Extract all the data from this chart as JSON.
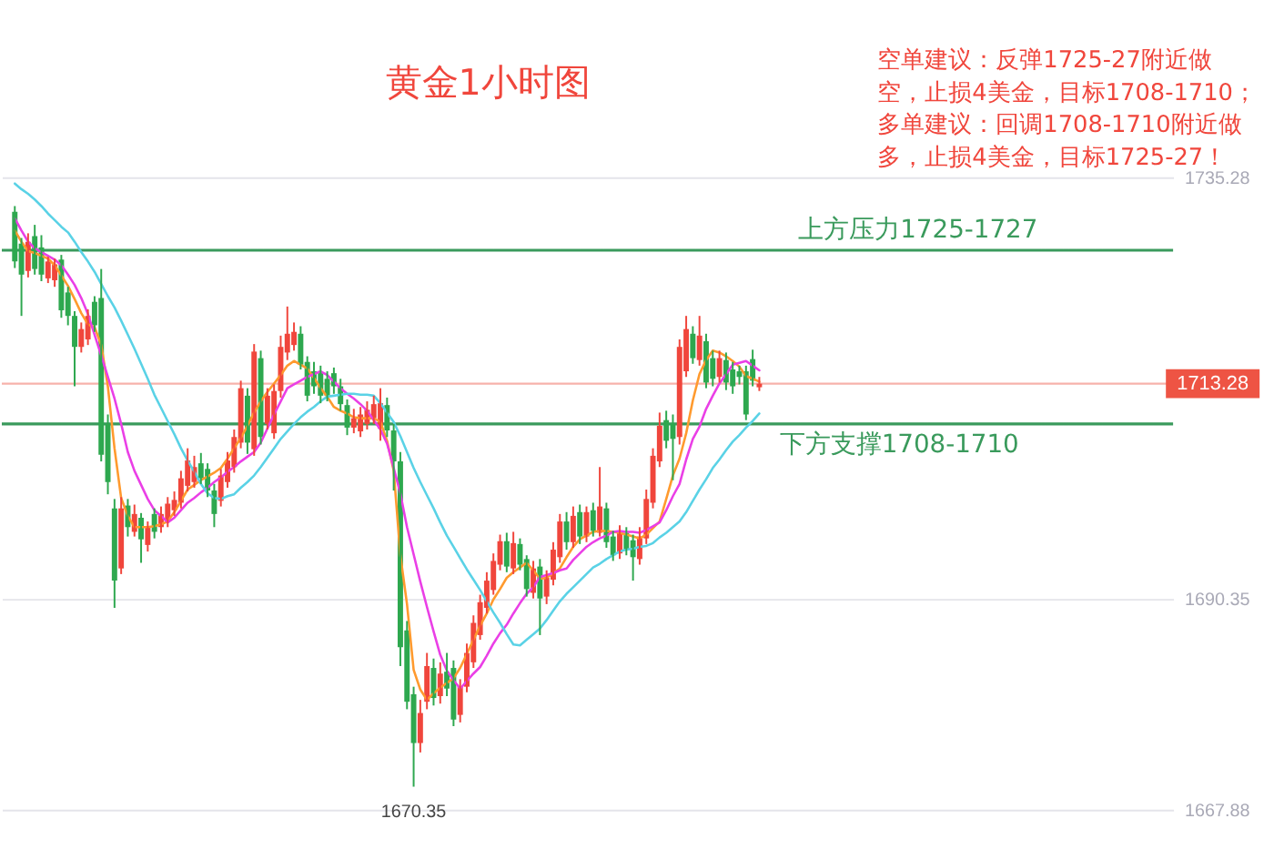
{
  "chart_data": {
    "type": "candlestick",
    "title": "黄金1小时图",
    "annotations": [
      "空单建议：反弹1725-27附近做空，止损4美金，目标1708-1710；多单建议：回调1708-1710附近做多，止损4美金，目标1725-27！",
      {
        "text": "1670.35",
        "y": 1670.35
      }
    ],
    "categories": [
      null,
      null,
      null,
      null,
      null,
      null,
      null,
      null,
      null,
      null,
      null,
      null,
      null,
      null,
      null,
      null,
      null,
      null,
      null,
      null,
      null,
      null,
      null,
      null,
      null,
      null,
      null,
      null,
      null,
      null,
      null,
      null,
      null,
      null,
      null,
      null,
      null,
      null,
      null,
      null,
      null,
      null,
      null,
      null,
      null,
      null,
      null,
      null,
      null,
      null,
      null,
      null,
      null,
      null,
      null,
      null,
      null,
      null,
      null,
      null,
      null,
      null,
      null,
      null,
      null,
      null,
      null,
      null,
      null,
      null,
      null,
      null,
      null,
      null,
      null,
      null,
      null,
      null,
      null,
      null,
      null,
      null,
      null,
      null,
      null,
      null,
      null,
      null,
      null,
      null,
      null,
      null,
      null,
      null,
      null,
      null,
      null,
      null,
      null,
      null,
      null,
      null,
      null,
      null,
      null,
      null,
      null,
      null,
      null,
      null,
      null,
      null,
      null
    ],
    "ohlc": [
      [
        1731.6,
        1732.2,
        1725.6,
        1726.3
      ],
      [
        1728.2,
        1728.8,
        1720.5,
        1724.9
      ],
      [
        1725.3,
        1729.3,
        1724.6,
        1728.4
      ],
      [
        1729.0,
        1730.2,
        1724.9,
        1725.5
      ],
      [
        1727.8,
        1729.1,
        1724.2,
        1724.9
      ],
      [
        1724.5,
        1726.8,
        1724.0,
        1726.3
      ],
      [
        1724.3,
        1726.6,
        1723.6,
        1726.0
      ],
      [
        1726.5,
        1727.0,
        1720.3,
        1721.1
      ],
      [
        1723.0,
        1723.6,
        1719.5,
        1720.5
      ],
      [
        1720.5,
        1721.0,
        1713.0,
        1717.2
      ],
      [
        1717.2,
        1719.8,
        1716.6,
        1719.1
      ],
      [
        1718.0,
        1721.2,
        1717.4,
        1720.5
      ],
      [
        1722.0,
        1722.6,
        1718.8,
        1719.5
      ],
      [
        1722.4,
        1725.5,
        1705.0,
        1705.7
      ],
      [
        1709.0,
        1710.0,
        1701.5,
        1702.8
      ],
      [
        1700.0,
        1701.0,
        1689.4,
        1692.3
      ],
      [
        1693.6,
        1701.2,
        1693.0,
        1700.0
      ],
      [
        1700.3,
        1701.0,
        1697.0,
        1698.0
      ],
      [
        1697.5,
        1700.4,
        1697.0,
        1699.4
      ],
      [
        1699.0,
        1699.5,
        1694.2,
        1696.7
      ],
      [
        1696.1,
        1698.6,
        1695.4,
        1698.0
      ],
      [
        1699.4,
        1700.0,
        1696.8,
        1697.5
      ],
      [
        1698.0,
        1700.2,
        1697.4,
        1699.4
      ],
      [
        1698.6,
        1701.2,
        1698.0,
        1700.5
      ],
      [
        1699.8,
        1701.8,
        1699.2,
        1700.9
      ],
      [
        1700.6,
        1704.0,
        1700.0,
        1703.2
      ],
      [
        1702.4,
        1706.4,
        1701.8,
        1705.1
      ],
      [
        1702.8,
        1705.6,
        1702.2,
        1704.4
      ],
      [
        1704.8,
        1705.9,
        1702.6,
        1703.2
      ],
      [
        1704.2,
        1704.8,
        1701.2,
        1701.9
      ],
      [
        1701.9,
        1702.6,
        1698.0,
        1699.4
      ],
      [
        1700.8,
        1704.2,
        1700.2,
        1703.5
      ],
      [
        1702.8,
        1706.0,
        1702.2,
        1705.1
      ],
      [
        1704.4,
        1708.4,
        1703.8,
        1707.6
      ],
      [
        1707.0,
        1713.6,
        1706.4,
        1712.8
      ],
      [
        1712.0,
        1712.8,
        1705.8,
        1707.0
      ],
      [
        1706.3,
        1717.5,
        1705.6,
        1716.7
      ],
      [
        1716.0,
        1716.8,
        1706.8,
        1707.6
      ],
      [
        1709.0,
        1712.8,
        1708.4,
        1712.0
      ],
      [
        1708.0,
        1713.2,
        1707.4,
        1712.5
      ],
      [
        1712.5,
        1718.4,
        1711.8,
        1717.2
      ],
      [
        1716.6,
        1721.5,
        1715.8,
        1718.6
      ],
      [
        1717.4,
        1719.8,
        1716.8,
        1718.8
      ],
      [
        1718.6,
        1719.4,
        1714.8,
        1715.3
      ],
      [
        1715.6,
        1716.2,
        1711.4,
        1712.0
      ],
      [
        1714.6,
        1715.6,
        1712.2,
        1713.0
      ],
      [
        1714.4,
        1715.2,
        1711.2,
        1712.0
      ],
      [
        1713.8,
        1714.6,
        1711.4,
        1712.0
      ],
      [
        1714.4,
        1715.0,
        1712.2,
        1713.0
      ],
      [
        1713.0,
        1713.8,
        1710.4,
        1711.1
      ],
      [
        1711.0,
        1711.6,
        1707.8,
        1708.6
      ],
      [
        1708.6,
        1710.6,
        1708.0,
        1709.6
      ],
      [
        1708.2,
        1710.8,
        1707.6,
        1710.0
      ],
      [
        1709.0,
        1711.4,
        1708.4,
        1710.5
      ],
      [
        1709.6,
        1712.0,
        1709.0,
        1711.1
      ],
      [
        1708.5,
        1712.8,
        1707.2,
        1711.2
      ],
      [
        1711.0,
        1711.8,
        1707.6,
        1708.3
      ],
      [
        1708.3,
        1709.0,
        1701.9,
        1705.0
      ],
      [
        1705.0,
        1706.0,
        1683.2,
        1685.2
      ],
      [
        1687.0,
        1688.0,
        1678.6,
        1679.4
      ],
      [
        1680.2,
        1681.0,
        1670.35,
        1675.0
      ],
      [
        1675.0,
        1679.6,
        1674.0,
        1678.2
      ],
      [
        1679.4,
        1684.6,
        1678.6,
        1683.2
      ],
      [
        1683.0,
        1684.0,
        1679.0,
        1679.8
      ],
      [
        1680.0,
        1683.6,
        1679.2,
        1682.4
      ],
      [
        1682.6,
        1684.6,
        1680.0,
        1680.8
      ],
      [
        1683.0,
        1683.8,
        1676.8,
        1677.5
      ],
      [
        1678.0,
        1681.8,
        1677.2,
        1681.0
      ],
      [
        1681.0,
        1685.6,
        1680.4,
        1684.6
      ],
      [
        1683.6,
        1688.6,
        1683.0,
        1687.8
      ],
      [
        1686.5,
        1690.8,
        1686.0,
        1690.0
      ],
      [
        1689.4,
        1693.2,
        1688.8,
        1692.3
      ],
      [
        1691.3,
        1695.2,
        1690.8,
        1694.4
      ],
      [
        1694.0,
        1697.2,
        1693.4,
        1696.5
      ],
      [
        1696.5,
        1697.4,
        1693.2,
        1693.8
      ],
      [
        1693.6,
        1697.5,
        1693.0,
        1696.3
      ],
      [
        1696.2,
        1696.8,
        1693.4,
        1694.0
      ],
      [
        1694.6,
        1695.0,
        1690.6,
        1691.4
      ],
      [
        1691.0,
        1694.4,
        1690.4,
        1693.6
      ],
      [
        1693.8,
        1694.6,
        1686.5,
        1690.4
      ],
      [
        1690.6,
        1693.4,
        1689.8,
        1692.6
      ],
      [
        1692.4,
        1696.4,
        1691.8,
        1695.6
      ],
      [
        1694.8,
        1699.4,
        1694.2,
        1698.6
      ],
      [
        1698.6,
        1699.6,
        1695.6,
        1696.4
      ],
      [
        1696.4,
        1700.2,
        1695.8,
        1699.2
      ],
      [
        1699.6,
        1700.4,
        1696.2,
        1697.0
      ],
      [
        1697.0,
        1700.2,
        1696.4,
        1699.6
      ],
      [
        1699.8,
        1700.6,
        1697.0,
        1697.6
      ],
      [
        1697.4,
        1704.4,
        1697.0,
        1700.2
      ],
      [
        1700.0,
        1700.6,
        1695.8,
        1696.4
      ],
      [
        1697.0,
        1697.6,
        1694.4,
        1695.0
      ],
      [
        1695.2,
        1698.2,
        1694.6,
        1697.4
      ],
      [
        1697.4,
        1698.0,
        1695.0,
        1695.6
      ],
      [
        1696.6,
        1697.2,
        1692.3,
        1694.8
      ],
      [
        1694.6,
        1698.0,
        1694.0,
        1697.0
      ],
      [
        1696.8,
        1702.0,
        1696.2,
        1701.0
      ],
      [
        1700.6,
        1706.4,
        1700.0,
        1705.6
      ],
      [
        1705.0,
        1710.2,
        1704.4,
        1708.8
      ],
      [
        1709.4,
        1710.4,
        1706.4,
        1707.2
      ],
      [
        1709.0,
        1710.0,
        1703.0,
        1707.4
      ],
      [
        1707.6,
        1718.0,
        1706.8,
        1717.2
      ],
      [
        1714.6,
        1720.5,
        1714.0,
        1719.1
      ],
      [
        1718.6,
        1719.4,
        1715.4,
        1716.0
      ],
      [
        1715.8,
        1720.5,
        1715.2,
        1718.4
      ],
      [
        1717.8,
        1718.6,
        1712.8,
        1713.4
      ],
      [
        1716.0,
        1716.8,
        1713.0,
        1713.8
      ],
      [
        1714.0,
        1716.8,
        1713.4,
        1716.0
      ],
      [
        1715.8,
        1716.6,
        1712.6,
        1713.4
      ],
      [
        1714.8,
        1715.6,
        1712.2,
        1713.0
      ],
      [
        1714.6,
        1715.2,
        1713.2,
        1714.0
      ],
      [
        1714.6,
        1715.2,
        1709.4,
        1710.0
      ],
      [
        1715.9,
        1716.9,
        1713.0,
        1713.6
      ],
      [
        1712.9,
        1714.0,
        1712.5,
        1713.28
      ]
    ],
    "colors": [
      "#2ea84f",
      "#2ea84f",
      "#f0463c",
      "#2ea84f",
      "#2ea84f",
      "#f0463c",
      "#f0463c",
      "#2ea84f",
      "#2ea84f",
      "#2ea84f",
      "#f0463c",
      "#f0463c",
      "#2ea84f",
      "#2ea84f",
      "#2ea84f",
      "#2ea84f",
      "#f0463c",
      "#2ea84f",
      "#f0463c",
      "#2ea84f",
      "#f0463c",
      "#2ea84f",
      "#f0463c",
      "#f0463c",
      "#f0463c",
      "#f0463c",
      "#f0463c",
      "#f0463c",
      "#2ea84f",
      "#2ea84f",
      "#2ea84f",
      "#f0463c",
      "#f0463c",
      "#f0463c",
      "#f0463c",
      "#2ea84f",
      "#f0463c",
      "#2ea84f",
      "#f0463c",
      "#f0463c",
      "#f0463c",
      "#f0463c",
      "#f0463c",
      "#2ea84f",
      "#2ea84f",
      "#2ea84f",
      "#2ea84f",
      "#2ea84f",
      "#2ea84f",
      "#2ea84f",
      "#2ea84f",
      "#f0463c",
      "#f0463c",
      "#f0463c",
      "#f0463c",
      "#f0463c",
      "#2ea84f",
      "#2ea84f",
      "#2ea84f",
      "#2ea84f",
      "#2ea84f",
      "#f0463c",
      "#f0463c",
      "#2ea84f",
      "#f0463c",
      "#2ea84f",
      "#2ea84f",
      "#f0463c",
      "#f0463c",
      "#f0463c",
      "#f0463c",
      "#f0463c",
      "#f0463c",
      "#f0463c",
      "#2ea84f",
      "#f0463c",
      "#2ea84f",
      "#2ea84f",
      "#f0463c",
      "#2ea84f",
      "#f0463c",
      "#f0463c",
      "#f0463c",
      "#2ea84f",
      "#f0463c",
      "#2ea84f",
      "#f0463c",
      "#2ea84f",
      "#f0463c",
      "#2ea84f",
      "#2ea84f",
      "#f0463c",
      "#2ea84f",
      "#2ea84f",
      "#f0463c",
      "#f0463c",
      "#f0463c",
      "#f0463c",
      "#2ea84f",
      "#2ea84f",
      "#f0463c",
      "#f0463c",
      "#2ea84f",
      "#f0463c",
      "#2ea84f",
      "#2ea84f",
      "#f0463c",
      "#2ea84f",
      "#2ea84f",
      "#2ea84f",
      "#2ea84f",
      "#2ea84f",
      "#f0463c"
    ],
    "series": [
      {
        "type": "line",
        "color": "#ff9a2e",
        "values": [
          1729.6,
          1728.4,
          1727.4,
          1727.2,
          1726.9,
          1726.6,
          1725.9,
          1724.8,
          1723.7,
          1722.3,
          1720.8,
          1719.6,
          1719.3,
          1717.4,
          1713.0,
          1706.4,
          1701.1,
          1699.2,
          1698.0,
          1698.0,
          1698.0,
          1698.1,
          1698.3,
          1698.6,
          1699.6,
          1700.8,
          1702.0,
          1702.5,
          1703.0,
          1703.4,
          1703.8,
          1704.3,
          1705.3,
          1706.4,
          1707.5,
          1708.8,
          1710.2,
          1711.4,
          1712.4,
          1713.3,
          1714.2,
          1715.2,
          1715.7,
          1715.3,
          1714.9,
          1713.9,
          1712.8,
          1711.9,
          1710.8,
          1710.4,
          1710.1,
          1709.7,
          1709.6,
          1709.6,
          1709.6,
          1709.2,
          1707.2,
          1704.0,
          1695.0,
          1689.8,
          1682.8,
          1680.7,
          1679.6,
          1680.3,
          1680.9,
          1681.4,
          1681.9,
          1683.0,
          1684.5,
          1686.0,
          1687.5,
          1688.8,
          1690.3,
          1691.4,
          1692.6,
          1693.2,
          1693.7,
          1694.2,
          1693.4,
          1692.5,
          1692.6,
          1693.1,
          1693.6,
          1694.8,
          1695.9,
          1696.7,
          1697.1,
          1697.5,
          1697.6,
          1697.6,
          1697.5,
          1697.4,
          1697.2,
          1697.0,
          1696.8,
          1697.2,
          1697.9,
          1698.6,
          1701.0,
          1703.5,
          1705.3,
          1708.0,
          1711.5,
          1714.3,
          1715.8,
          1716.8,
          1716.6,
          1716.2,
          1715.7,
          1715.1,
          1714.1,
          1713.8,
          1713.5
        ]
      },
      {
        "type": "line",
        "color": "#ea3fe6",
        "values": [
          1730.9,
          1729.6,
          1728.4,
          1727.7,
          1727.3,
          1726.9,
          1726.5,
          1725.9,
          1724.9,
          1723.8,
          1722.4,
          1720.7,
          1718.5,
          1716.3,
          1714.0,
          1711.7,
          1709.0,
          1706.0,
          1704.0,
          1702.5,
          1701.0,
          1699.8,
          1699.2,
          1698.5,
          1699.0,
          1699.8,
          1700.6,
          1701.1,
          1701.7,
          1702.2,
          1702.8,
          1703.3,
          1703.9,
          1704.4,
          1705.0,
          1705.5,
          1706.0,
          1707.0,
          1708.5,
          1710.0,
          1711.4,
          1712.8,
          1713.2,
          1713.6,
          1714.0,
          1714.3,
          1714.6,
          1714.2,
          1713.5,
          1712.8,
          1712.2,
          1711.7,
          1711.1,
          1710.4,
          1709.4,
          1708.4,
          1706.9,
          1704.3,
          1701.6,
          1698.0,
          1695.1,
          1692.2,
          1689.5,
          1686.9,
          1684.4,
          1682.7,
          1681.7,
          1680.8,
          1681.6,
          1682.4,
          1683.1,
          1684.3,
          1685.6,
          1686.7,
          1687.6,
          1688.8,
          1689.9,
          1690.9,
          1691.6,
          1692.7,
          1692.9,
          1693.1,
          1693.4,
          1693.6,
          1694.5,
          1695.2,
          1695.9,
          1696.4,
          1696.8,
          1697.1,
          1697.5,
          1697.6,
          1697.5,
          1697.5,
          1697.4,
          1697.7,
          1698.1,
          1698.5,
          1699.8,
          1701.3,
          1702.6,
          1705.2,
          1707.4,
          1708.7,
          1710.6,
          1712.0,
          1713.3,
          1714.3,
          1715.3,
          1715.5,
          1715.7,
          1715.2,
          1714.7
        ]
      },
      {
        "type": "line",
        "color": "#5ad2e6",
        "values": [
          1734.6,
          1734.0,
          1733.5,
          1732.9,
          1732.2,
          1731.4,
          1730.7,
          1730.0,
          1729.4,
          1728.4,
          1727.3,
          1726.3,
          1725.2,
          1723.9,
          1722.6,
          1721.4,
          1720.0,
          1718.5,
          1717.0,
          1715.4,
          1713.8,
          1712.1,
          1710.7,
          1709.3,
          1707.9,
          1706.4,
          1705.1,
          1703.9,
          1702.6,
          1701.6,
          1701.1,
          1701.0,
          1701.3,
          1701.5,
          1702.2,
          1702.8,
          1703.5,
          1704.4,
          1705.4,
          1706.4,
          1707.4,
          1708.2,
          1709.0,
          1709.7,
          1710.3,
          1710.8,
          1711.4,
          1711.9,
          1712.0,
          1712.1,
          1712.2,
          1712.2,
          1712.1,
          1712.1,
          1712.0,
          1711.2,
          1710.2,
          1709.2,
          1707.7,
          1706.0,
          1704.3,
          1702.8,
          1701.4,
          1700.0,
          1698.5,
          1697.1,
          1695.9,
          1694.7,
          1693.5,
          1692.4,
          1691.3,
          1690.1,
          1688.9,
          1687.8,
          1686.6,
          1685.5,
          1685.4,
          1686.0,
          1686.6,
          1687.2,
          1688.1,
          1689.1,
          1690.1,
          1690.9,
          1691.6,
          1692.3,
          1693.0,
          1693.7,
          1694.1,
          1694.6,
          1695.0,
          1695.4,
          1695.6,
          1695.7,
          1695.9,
          1696.0,
          1696.3,
          1696.9,
          1697.4,
          1698.0,
          1698.6,
          1699.6,
          1700.8,
          1702.0,
          1703.1,
          1704.3,
          1705.2,
          1706.2,
          1707.1,
          1707.8,
          1708.6,
          1709.3,
          1710.1
        ]
      }
    ],
    "ylim": [
      1663.1,
      1753.7
    ],
    "yticks": [
      1667.88,
      1690.35,
      1735.28
    ],
    "grid": "y",
    "tick_labels": "y",
    "ref_lines": [
      {
        "axis": "y",
        "value": 1727.5,
        "label": "上方压力1725-1727",
        "color": "#3a9a5c"
      },
      {
        "axis": "y",
        "value": 1709,
        "label": "下方支撑1708-1710",
        "color": "#3a9a5c"
      },
      {
        "axis": "y",
        "value": 1713.28,
        "label": "1713.28",
        "color": "#ee5444"
      }
    ]
  }
}
